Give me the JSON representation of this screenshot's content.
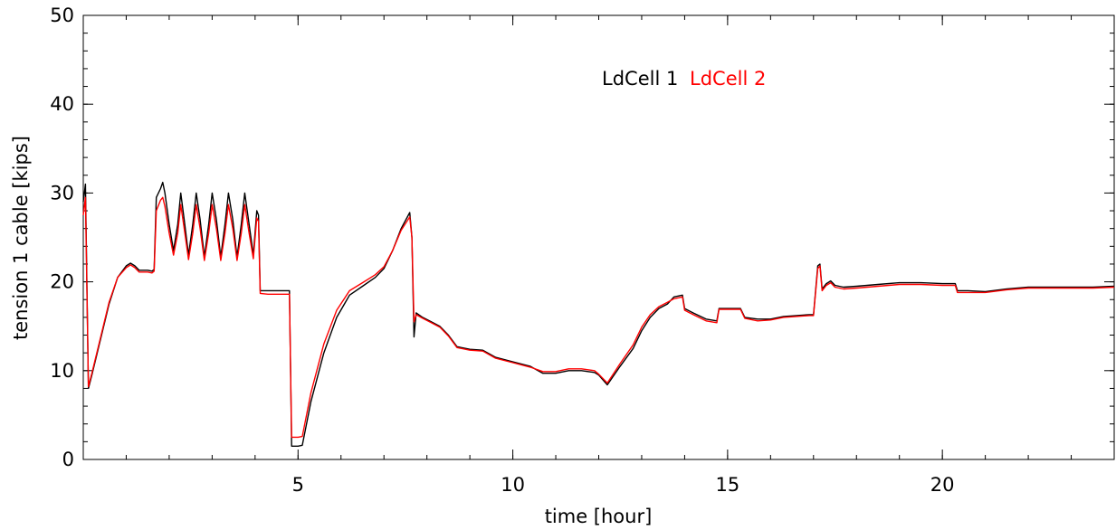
{
  "chart_data": {
    "type": "line",
    "title": "",
    "xlabel": "time [hour]",
    "ylabel": "tension 1 cable [kips]",
    "xlim": [
      0,
      24
    ],
    "ylim": [
      0,
      50
    ],
    "x_ticks": [
      5,
      10,
      15,
      20
    ],
    "y_ticks": [
      0,
      10,
      20,
      30,
      40,
      50
    ],
    "x_tick_labels": [
      "5",
      "10",
      "15",
      "20"
    ],
    "y_tick_labels": [
      "0",
      "10",
      "20",
      "30",
      "40",
      "50"
    ],
    "grid": false,
    "legend_position": "top-center",
    "series": [
      {
        "name": "LdCell 1",
        "color": "#000000",
        "points": [
          [
            0.0,
            29.0
          ],
          [
            0.05,
            31.0
          ],
          [
            0.12,
            8.0
          ],
          [
            0.2,
            9.5
          ],
          [
            0.4,
            13.5
          ],
          [
            0.6,
            17.5
          ],
          [
            0.8,
            20.5
          ],
          [
            1.0,
            21.8
          ],
          [
            1.1,
            22.1
          ],
          [
            1.2,
            21.8
          ],
          [
            1.3,
            21.3
          ],
          [
            1.5,
            21.3
          ],
          [
            1.6,
            21.2
          ],
          [
            1.65,
            21.4
          ],
          [
            1.7,
            29.5
          ],
          [
            1.8,
            30.5
          ],
          [
            1.85,
            31.2
          ],
          [
            1.9,
            30.0
          ],
          [
            2.0,
            26.5
          ],
          [
            2.1,
            23.5
          ],
          [
            2.2,
            26.5
          ],
          [
            2.27,
            30.0
          ],
          [
            2.35,
            27.0
          ],
          [
            2.45,
            23.0
          ],
          [
            2.55,
            26.5
          ],
          [
            2.63,
            30.0
          ],
          [
            2.72,
            27.0
          ],
          [
            2.82,
            22.8
          ],
          [
            2.92,
            26.5
          ],
          [
            3.0,
            30.0
          ],
          [
            3.1,
            27.0
          ],
          [
            3.2,
            22.8
          ],
          [
            3.3,
            26.5
          ],
          [
            3.38,
            30.0
          ],
          [
            3.48,
            27.0
          ],
          [
            3.58,
            22.8
          ],
          [
            3.68,
            26.5
          ],
          [
            3.76,
            30.0
          ],
          [
            3.86,
            26.5
          ],
          [
            3.96,
            23.0
          ],
          [
            4.04,
            28.0
          ],
          [
            4.08,
            27.5
          ],
          [
            4.12,
            19.0
          ],
          [
            4.3,
            19.0
          ],
          [
            4.6,
            19.0
          ],
          [
            4.8,
            19.0
          ],
          [
            4.85,
            1.5
          ],
          [
            5.0,
            1.5
          ],
          [
            5.1,
            1.6
          ],
          [
            5.3,
            6.5
          ],
          [
            5.6,
            12.0
          ],
          [
            5.9,
            16.0
          ],
          [
            6.2,
            18.5
          ],
          [
            6.5,
            19.5
          ],
          [
            6.8,
            20.5
          ],
          [
            7.0,
            21.5
          ],
          [
            7.2,
            23.5
          ],
          [
            7.4,
            26.0
          ],
          [
            7.6,
            27.8
          ],
          [
            7.65,
            25.0
          ],
          [
            7.7,
            13.8
          ],
          [
            7.75,
            16.5
          ],
          [
            7.9,
            16.0
          ],
          [
            8.1,
            15.5
          ],
          [
            8.3,
            15.0
          ],
          [
            8.5,
            14.0
          ],
          [
            8.7,
            12.7
          ],
          [
            9.0,
            12.4
          ],
          [
            9.3,
            12.3
          ],
          [
            9.6,
            11.5
          ],
          [
            10.0,
            11.0
          ],
          [
            10.4,
            10.5
          ],
          [
            10.7,
            9.7
          ],
          [
            11.0,
            9.7
          ],
          [
            11.3,
            10.0
          ],
          [
            11.6,
            10.0
          ],
          [
            11.9,
            9.8
          ],
          [
            12.0,
            9.5
          ],
          [
            12.2,
            8.4
          ],
          [
            12.5,
            10.5
          ],
          [
            12.8,
            12.5
          ],
          [
            13.0,
            14.5
          ],
          [
            13.2,
            16.0
          ],
          [
            13.4,
            17.0
          ],
          [
            13.6,
            17.5
          ],
          [
            13.75,
            18.3
          ],
          [
            13.95,
            18.5
          ],
          [
            14.0,
            17.0
          ],
          [
            14.2,
            16.5
          ],
          [
            14.5,
            15.8
          ],
          [
            14.75,
            15.6
          ],
          [
            14.8,
            17.0
          ],
          [
            15.0,
            17.0
          ],
          [
            15.3,
            17.0
          ],
          [
            15.4,
            16.0
          ],
          [
            15.7,
            15.8
          ],
          [
            16.0,
            15.8
          ],
          [
            16.3,
            16.1
          ],
          [
            16.6,
            16.2
          ],
          [
            16.9,
            16.3
          ],
          [
            17.0,
            16.3
          ],
          [
            17.1,
            21.8
          ],
          [
            17.15,
            22.0
          ],
          [
            17.2,
            19.2
          ],
          [
            17.3,
            19.8
          ],
          [
            17.4,
            20.1
          ],
          [
            17.5,
            19.6
          ],
          [
            17.7,
            19.4
          ],
          [
            18.0,
            19.5
          ],
          [
            18.5,
            19.7
          ],
          [
            19.0,
            19.9
          ],
          [
            19.5,
            19.9
          ],
          [
            20.0,
            19.8
          ],
          [
            20.3,
            19.8
          ],
          [
            20.35,
            19.0
          ],
          [
            20.6,
            19.0
          ],
          [
            21.0,
            18.9
          ],
          [
            21.5,
            19.2
          ],
          [
            22.0,
            19.4
          ],
          [
            22.5,
            19.4
          ],
          [
            23.0,
            19.4
          ],
          [
            23.5,
            19.4
          ],
          [
            24.0,
            19.5
          ]
        ]
      },
      {
        "name": "LdCell 2",
        "color": "#ff0000",
        "points": [
          [
            0.0,
            27.5
          ],
          [
            0.05,
            29.5
          ],
          [
            0.12,
            8.2
          ],
          [
            0.2,
            9.7
          ],
          [
            0.4,
            13.7
          ],
          [
            0.6,
            17.7
          ],
          [
            0.8,
            20.5
          ],
          [
            1.0,
            21.6
          ],
          [
            1.1,
            21.9
          ],
          [
            1.2,
            21.6
          ],
          [
            1.3,
            21.1
          ],
          [
            1.5,
            21.1
          ],
          [
            1.6,
            21.0
          ],
          [
            1.65,
            21.2
          ],
          [
            1.7,
            28.0
          ],
          [
            1.8,
            29.2
          ],
          [
            1.85,
            29.5
          ],
          [
            1.9,
            28.5
          ],
          [
            2.0,
            25.5
          ],
          [
            2.1,
            23.0
          ],
          [
            2.2,
            25.5
          ],
          [
            2.27,
            28.7
          ],
          [
            2.35,
            26.0
          ],
          [
            2.45,
            22.5
          ],
          [
            2.55,
            25.5
          ],
          [
            2.63,
            28.7
          ],
          [
            2.72,
            26.0
          ],
          [
            2.82,
            22.4
          ],
          [
            2.92,
            25.5
          ],
          [
            3.0,
            28.7
          ],
          [
            3.1,
            26.0
          ],
          [
            3.2,
            22.4
          ],
          [
            3.3,
            25.5
          ],
          [
            3.38,
            28.7
          ],
          [
            3.48,
            26.0
          ],
          [
            3.58,
            22.4
          ],
          [
            3.68,
            25.5
          ],
          [
            3.76,
            28.7
          ],
          [
            3.86,
            25.5
          ],
          [
            3.96,
            22.6
          ],
          [
            4.04,
            27.2
          ],
          [
            4.08,
            26.8
          ],
          [
            4.12,
            18.7
          ],
          [
            4.3,
            18.6
          ],
          [
            4.6,
            18.6
          ],
          [
            4.8,
            18.6
          ],
          [
            4.85,
            2.5
          ],
          [
            5.0,
            2.5
          ],
          [
            5.1,
            2.6
          ],
          [
            5.3,
            7.5
          ],
          [
            5.6,
            13.0
          ],
          [
            5.9,
            16.8
          ],
          [
            6.2,
            19.0
          ],
          [
            6.5,
            19.9
          ],
          [
            6.8,
            20.8
          ],
          [
            7.0,
            21.7
          ],
          [
            7.2,
            23.5
          ],
          [
            7.4,
            25.8
          ],
          [
            7.6,
            27.3
          ],
          [
            7.65,
            25.0
          ],
          [
            7.7,
            15.5
          ],
          [
            7.75,
            16.3
          ],
          [
            7.9,
            15.9
          ],
          [
            8.1,
            15.4
          ],
          [
            8.3,
            14.9
          ],
          [
            8.5,
            13.9
          ],
          [
            8.7,
            12.6
          ],
          [
            9.0,
            12.3
          ],
          [
            9.3,
            12.2
          ],
          [
            9.6,
            11.4
          ],
          [
            10.0,
            10.9
          ],
          [
            10.4,
            10.4
          ],
          [
            10.7,
            9.9
          ],
          [
            11.0,
            9.9
          ],
          [
            11.3,
            10.2
          ],
          [
            11.6,
            10.2
          ],
          [
            11.9,
            10.0
          ],
          [
            12.0,
            9.6
          ],
          [
            12.2,
            8.6
          ],
          [
            12.5,
            10.8
          ],
          [
            12.8,
            12.9
          ],
          [
            13.0,
            14.9
          ],
          [
            13.2,
            16.3
          ],
          [
            13.4,
            17.2
          ],
          [
            13.6,
            17.7
          ],
          [
            13.75,
            18.1
          ],
          [
            13.95,
            18.3
          ],
          [
            14.0,
            16.8
          ],
          [
            14.2,
            16.3
          ],
          [
            14.5,
            15.6
          ],
          [
            14.75,
            15.4
          ],
          [
            14.8,
            16.9
          ],
          [
            15.0,
            16.9
          ],
          [
            15.3,
            16.9
          ],
          [
            15.4,
            15.9
          ],
          [
            15.7,
            15.6
          ],
          [
            16.0,
            15.7
          ],
          [
            16.3,
            16.0
          ],
          [
            16.6,
            16.1
          ],
          [
            16.9,
            16.2
          ],
          [
            17.0,
            16.2
          ],
          [
            17.1,
            21.5
          ],
          [
            17.15,
            21.8
          ],
          [
            17.2,
            19.0
          ],
          [
            17.3,
            19.6
          ],
          [
            17.4,
            19.9
          ],
          [
            17.5,
            19.4
          ],
          [
            17.7,
            19.2
          ],
          [
            18.0,
            19.3
          ],
          [
            18.5,
            19.5
          ],
          [
            19.0,
            19.7
          ],
          [
            19.5,
            19.7
          ],
          [
            20.0,
            19.6
          ],
          [
            20.3,
            19.6
          ],
          [
            20.35,
            18.8
          ],
          [
            20.6,
            18.8
          ],
          [
            21.0,
            18.8
          ],
          [
            21.5,
            19.1
          ],
          [
            22.0,
            19.3
          ],
          [
            22.5,
            19.3
          ],
          [
            23.0,
            19.3
          ],
          [
            23.5,
            19.3
          ],
          [
            24.0,
            19.4
          ]
        ]
      }
    ]
  }
}
